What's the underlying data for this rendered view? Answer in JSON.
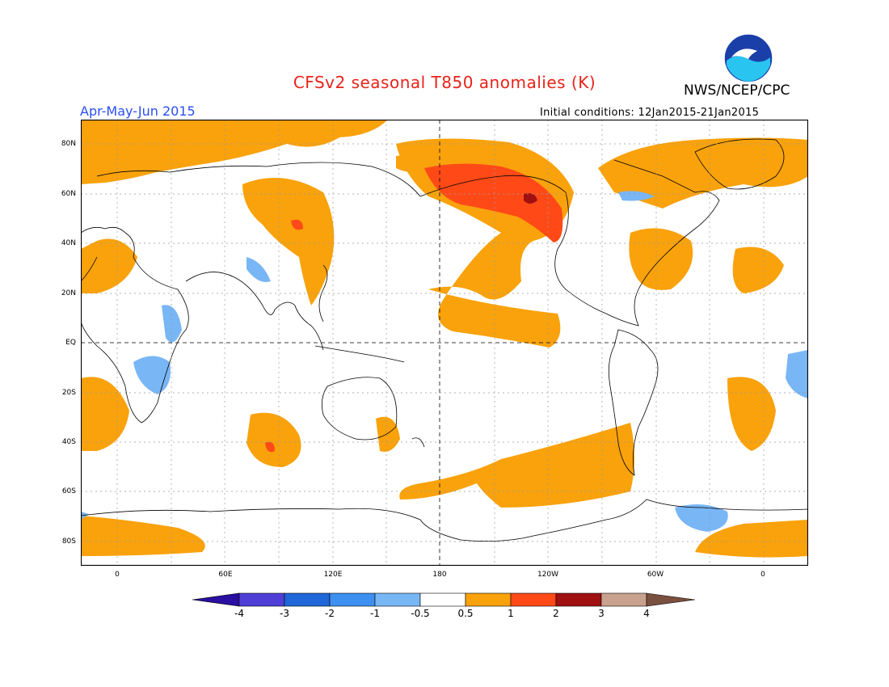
{
  "header": {
    "title": "CFSv2 seasonal T850 anomalies (K)",
    "agency": "NWS/NCEP/CPC",
    "season": "Apr-May-Jun 2015",
    "initial_conditions": "Initial conditions: 12Jan2015-21Jan2015",
    "logo_text": "NOAA"
  },
  "axes": {
    "lat_ticks": [
      "80N",
      "60N",
      "40N",
      "20N",
      "EQ",
      "20S",
      "40S",
      "60S",
      "80S"
    ],
    "lon_ticks": [
      "0",
      "60E",
      "120E",
      "180",
      "120W",
      "60W",
      "0"
    ]
  },
  "colorbar": {
    "labels": [
      "-4",
      "-3",
      "-2",
      "-1",
      "-0.5",
      "0.5",
      "1",
      "2",
      "3",
      "4"
    ],
    "colors": [
      "#2a0fa0",
      "#4f3fd6",
      "#1f66d8",
      "#3d8ff0",
      "#79b6f5",
      "#ffffff",
      "#f9a20c",
      "#ff4a17",
      "#a01010",
      "#c9a18f",
      "#7a5040"
    ]
  },
  "colors": {
    "warm1": "#f9a20c",
    "warm2": "#ff4a17",
    "warm3": "#a01010",
    "cool1": "#79b6f5"
  }
}
